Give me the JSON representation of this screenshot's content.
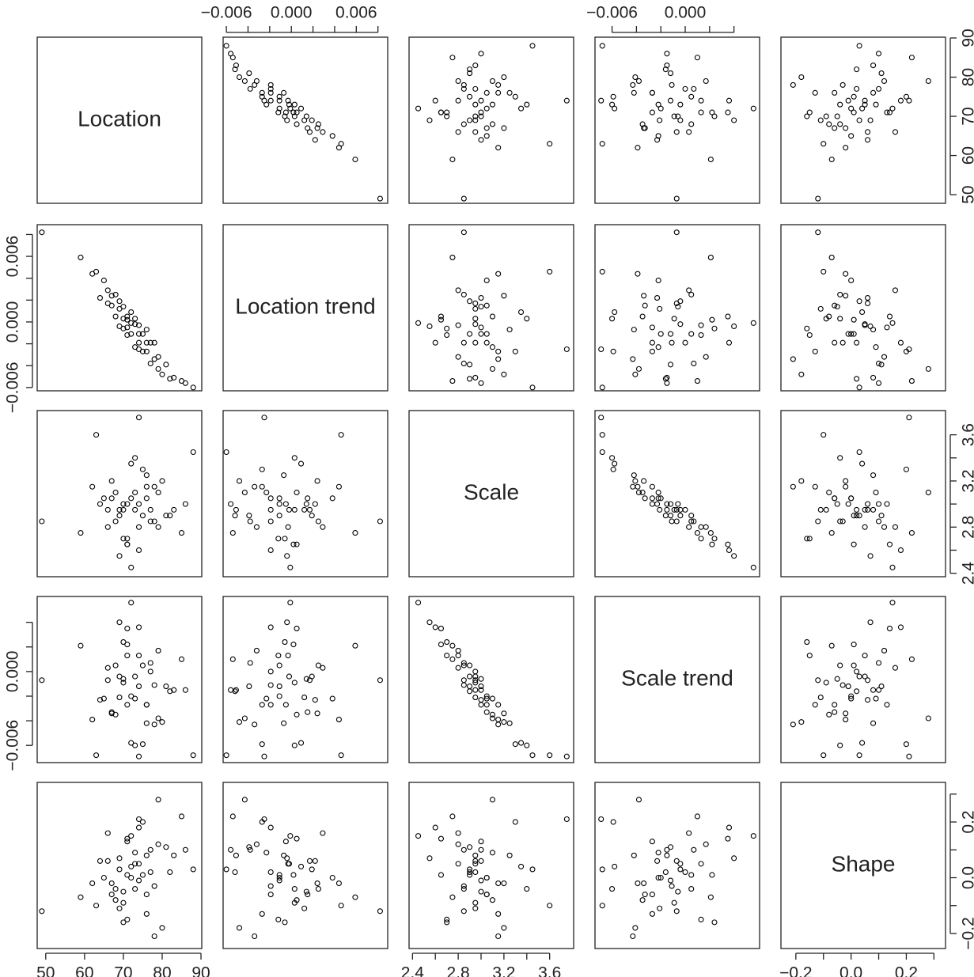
{
  "chart_data": {
    "type": "pairs",
    "point_color": "#000000",
    "variables": [
      {
        "name": "Location",
        "lim": [
          47.8,
          90.2
        ],
        "ticks": [
          50,
          60,
          70,
          80,
          90
        ],
        "values": [
          73,
          68,
          79,
          65,
          71,
          76,
          82,
          70,
          74,
          62,
          77,
          69,
          72,
          85,
          67,
          75,
          80,
          71,
          64,
          78,
          73,
          70,
          88,
          66,
          74,
          69,
          76,
          81,
          72,
          59,
          75,
          68,
          71,
          77,
          63,
          74,
          79,
          70,
          83,
          67,
          72,
          76,
          69,
          74,
          49,
          86,
          71,
          78,
          66,
          73
        ]
      },
      {
        "name": "Location trend",
        "lim": [
          -0.0063,
          0.0089
        ],
        "ticks": [
          {
            "value": -0.006,
            "label": "−0.006"
          },
          {
            "value": 0,
            "label": "0.000"
          },
          0.006
        ],
        "minor_ticks": [
          -0.004,
          -0.002,
          0.002,
          0.004,
          0.008
        ],
        "values": [
          -0.0002,
          0.0005,
          -0.0032,
          0.0038,
          -0.0012,
          -0.0007,
          -0.0052,
          0.0014,
          -0.0019,
          0.0044,
          -0.0038,
          0.0012,
          0.0009,
          -0.0054,
          0.0015,
          -0.0011,
          -0.0048,
          0.0005,
          0.0022,
          -0.0019,
          -0.0023,
          0.0003,
          -0.006,
          0.0029,
          -0.0011,
          -0.0004,
          -0.0027,
          -0.0039,
          -0.0011,
          0.0059,
          -0.0027,
          0.0025,
          -0.0005,
          -0.0019,
          0.0046,
          -0.0003,
          -0.0043,
          -0.0006,
          -0.0051,
          0.0024,
          -0.0001,
          -0.0019,
          0.0019,
          -0.0025,
          0.0082,
          -0.0056,
          0.0002,
          -0.0034,
          0.0017,
          0.0003
        ]
      },
      {
        "name": "Scale",
        "lim": [
          2.37,
          3.81
        ],
        "ticks": [
          2.4,
          2.8,
          3.2,
          3.6
        ],
        "minor_ticks": [
          2.6,
          3.0,
          3.4
        ],
        "values": [
          2.95,
          3.1,
          2.8,
          3.05,
          2.7,
          3.25,
          2.9,
          3.0,
          2.6,
          3.15,
          2.85,
          2.95,
          3.35,
          2.75,
          3.05,
          2.9,
          3.2,
          2.65,
          3.0,
          2.85,
          3.1,
          2.95,
          3.45,
          2.8,
          3.0,
          2.55,
          3.15,
          2.9,
          3.05,
          2.75,
          3.3,
          2.85,
          3.0,
          2.95,
          3.6,
          2.8,
          3.1,
          2.7,
          2.95,
          3.2,
          2.45,
          3.05,
          2.9,
          3.75,
          2.85,
          3.0,
          2.65,
          3.15,
          2.95,
          3.4
        ]
      },
      {
        "name": "Scale trend",
        "lim": [
          -0.0074,
          0.0061
        ],
        "ticks": [
          {
            "value": -0.006,
            "label": "−0.006"
          },
          {
            "value": 0,
            "label": "0.000"
          }
        ],
        "minor_ticks": [
          -0.004,
          -0.002,
          0.002,
          0.004
        ],
        "values": [
          -0.0004,
          -0.0035,
          0.0017,
          -0.0022,
          0.0013,
          -0.0042,
          -0.0016,
          -0.0006,
          0.0036,
          -0.0039,
          0.0007,
          -0.0021,
          -0.0058,
          0.001,
          -0.0033,
          0.0005,
          -0.0041,
          0.0035,
          -0.0023,
          -0.0011,
          -0.0022,
          -0.0009,
          -0.0068,
          0.0003,
          -0.0012,
          0.004,
          -0.0027,
          -0.0012,
          -0.002,
          0.0021,
          -0.0059,
          0.0005,
          -0.0027,
          0.0,
          -0.0068,
          0.0013,
          -0.0038,
          0.0024,
          -0.0015,
          -0.0034,
          0.0056,
          -0.0027,
          -0.0004,
          -0.0069,
          -0.0007,
          -0.0015,
          0.0022,
          -0.0043,
          -0.0007,
          -0.006
        ]
      },
      {
        "name": "Shape",
        "lim": [
          -0.254,
          0.342
        ],
        "ticks": [
          {
            "value": -0.2,
            "label": "−0.2"
          },
          {
            "value": 0,
            "label": "0.0"
          },
          0.2
        ],
        "minor_ticks": [
          -0.1,
          0.1,
          0.3
        ],
        "values": [
          0.05,
          -0.08,
          0.12,
          0.0,
          -0.15,
          0.08,
          0.02,
          -0.05,
          0.18,
          -0.02,
          0.1,
          -0.11,
          0.04,
          0.22,
          -0.06,
          0.01,
          -0.18,
          0.14,
          0.06,
          -0.03,
          0.09,
          -0.09,
          0.03,
          0.16,
          -0.01,
          0.07,
          -0.13,
          0.11,
          0.0,
          -0.07,
          0.2,
          -0.04,
          0.13,
          0.02,
          -0.1,
          0.05,
          0.28,
          -0.16,
          0.08,
          -0.02,
          0.15,
          -0.06,
          0.03,
          0.21,
          -0.12,
          0.1,
          0.01,
          -0.21,
          0.06,
          -0.04
        ]
      }
    ]
  }
}
